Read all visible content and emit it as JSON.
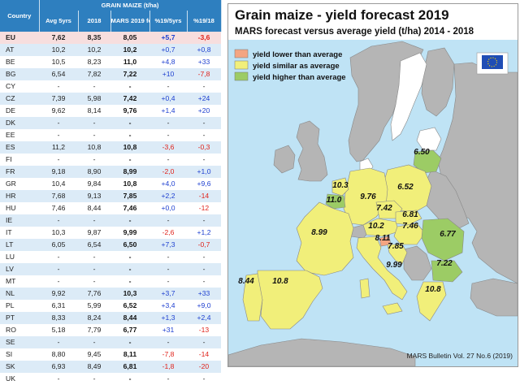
{
  "table": {
    "title": "GRAIN MAIZE (t/ha)",
    "columns": [
      "Country",
      "Avg 5yrs",
      "2018",
      "MARS 2019 forecasts",
      "%19/5yrs",
      "%19/18"
    ],
    "rows": [
      [
        "EU",
        "7,62",
        "8,35",
        "8,05",
        "+5,7",
        "-3,6"
      ],
      [
        "AT",
        "10,2",
        "10,2",
        "10,2",
        "+0,7",
        "+0,8"
      ],
      [
        "BE",
        "10,5",
        "8,23",
        "11,0",
        "+4,8",
        "+33"
      ],
      [
        "BG",
        "6,54",
        "7,82",
        "7,22",
        "+10",
        "-7,8"
      ],
      [
        "CY",
        "-",
        "-",
        "-",
        "-",
        "-"
      ],
      [
        "CZ",
        "7,39",
        "5,98",
        "7,42",
        "+0,4",
        "+24"
      ],
      [
        "DE",
        "9,62",
        "8,14",
        "9,76",
        "+1,4",
        "+20"
      ],
      [
        "DK",
        "-",
        "-",
        "-",
        "-",
        "-"
      ],
      [
        "EE",
        "-",
        "-",
        "-",
        "-",
        "-"
      ],
      [
        "ES",
        "11,2",
        "10,8",
        "10,8",
        "-3,6",
        "-0,3"
      ],
      [
        "FI",
        "-",
        "-",
        "-",
        "-",
        "-"
      ],
      [
        "FR",
        "9,18",
        "8,90",
        "8,99",
        "-2,0",
        "+1,0"
      ],
      [
        "GR",
        "10,4",
        "9,84",
        "10,8",
        "+4,0",
        "+9,6"
      ],
      [
        "HR",
        "7,68",
        "9,13",
        "7,85",
        "+2,2",
        "-14"
      ],
      [
        "HU",
        "7,46",
        "8,44",
        "7,46",
        "+0,0",
        "-12"
      ],
      [
        "IE",
        "-",
        "-",
        "-",
        "-",
        "-"
      ],
      [
        "IT",
        "10,3",
        "9,87",
        "9,99",
        "-2,6",
        "+1,2"
      ],
      [
        "LT",
        "6,05",
        "6,54",
        "6,50",
        "+7,3",
        "-0,7"
      ],
      [
        "LU",
        "-",
        "-",
        "-",
        "-",
        "-"
      ],
      [
        "LV",
        "-",
        "-",
        "-",
        "-",
        "-"
      ],
      [
        "MT",
        "-",
        "-",
        "-",
        "-",
        "-"
      ],
      [
        "NL",
        "9,92",
        "7,76",
        "10,3",
        "+3,7",
        "+33"
      ],
      [
        "PL",
        "6,31",
        "5,99",
        "6,52",
        "+3,4",
        "+9,0"
      ],
      [
        "PT",
        "8,33",
        "8,24",
        "8,44",
        "+1,3",
        "+2,4"
      ],
      [
        "RO",
        "5,18",
        "7,79",
        "6,77",
        "+31",
        "-13"
      ],
      [
        "SE",
        "-",
        "-",
        "-",
        "-",
        "-"
      ],
      [
        "SI",
        "8,80",
        "9,45",
        "8,11",
        "-7,8",
        "-14"
      ],
      [
        "SK",
        "6,93",
        "8,49",
        "6,81",
        "-1,8",
        "-20"
      ],
      [
        "UK",
        "-",
        "-",
        "-",
        "-",
        "-"
      ]
    ]
  },
  "map": {
    "title": "Grain maize - yield forecast 2019",
    "subtitle": "MARS forecast versus average yield (t/ha) 2014 - 2018",
    "credit": "MARS Bulletin Vol. 27 No.6 (2019)",
    "legend": [
      {
        "label": "yield lower than average",
        "color": "#f4a582"
      },
      {
        "label": "yield similar as average",
        "color": "#f1ef7a"
      },
      {
        "label": "yield higher than average",
        "color": "#9ccc65"
      }
    ],
    "colors": {
      "sea": "#bfe3f5",
      "non_eu": "#b5b5b5",
      "no_data": "#ffffff"
    }
  },
  "chart_data": {
    "type": "table",
    "title": "Grain maize - yield forecast 2019",
    "subtitle": "MARS forecast versus average yield (t/ha) 2014 - 2018",
    "unit": "t/ha",
    "map_labels": [
      {
        "country": "PT",
        "value": 8.44,
        "category": "similar"
      },
      {
        "country": "ES",
        "value": 10.8,
        "category": "similar"
      },
      {
        "country": "FR",
        "value": 8.99,
        "category": "similar"
      },
      {
        "country": "BE",
        "value": 11.0,
        "category": "higher"
      },
      {
        "country": "NL",
        "value": 10.3,
        "category": "similar"
      },
      {
        "country": "DE",
        "value": 9.76,
        "category": "similar"
      },
      {
        "country": "PL",
        "value": 6.52,
        "category": "similar"
      },
      {
        "country": "LT",
        "value": 6.5,
        "category": "higher"
      },
      {
        "country": "CZ",
        "value": 7.42,
        "category": "similar"
      },
      {
        "country": "SK",
        "value": 6.81,
        "category": "similar"
      },
      {
        "country": "AT",
        "value": 10.2,
        "category": "similar"
      },
      {
        "country": "HU",
        "value": 7.46,
        "category": "similar"
      },
      {
        "country": "RO",
        "value": 6.77,
        "category": "higher"
      },
      {
        "country": "SI",
        "value": 8.11,
        "category": "lower"
      },
      {
        "country": "HR",
        "value": 7.85,
        "category": "similar"
      },
      {
        "country": "BG",
        "value": 7.22,
        "category": "higher"
      },
      {
        "country": "IT",
        "value": 9.99,
        "category": "similar"
      },
      {
        "country": "GR",
        "value": 10.8,
        "category": "similar"
      }
    ]
  }
}
